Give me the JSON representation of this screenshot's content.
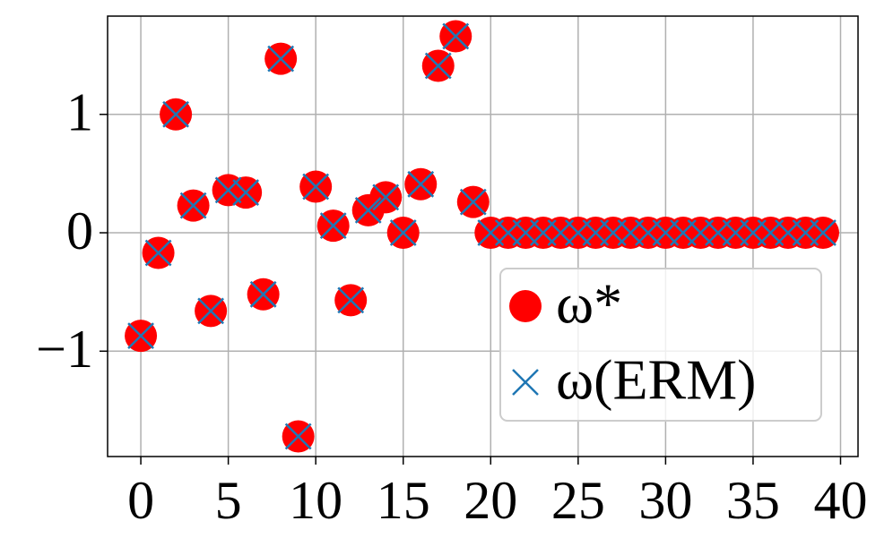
{
  "chart_data": {
    "type": "scatter",
    "x": [
      0,
      1,
      2,
      3,
      4,
      5,
      6,
      7,
      8,
      9,
      10,
      11,
      12,
      13,
      14,
      15,
      16,
      17,
      18,
      19,
      20,
      21,
      22,
      23,
      24,
      25,
      26,
      27,
      28,
      29,
      30,
      31,
      32,
      33,
      34,
      35,
      36,
      37,
      38,
      39
    ],
    "series": [
      {
        "name": "ω*",
        "color": "#ff0000",
        "marker": "circle",
        "values": [
          -0.87,
          -0.17,
          1.0,
          0.23,
          -0.66,
          0.36,
          0.34,
          -0.52,
          1.47,
          -1.72,
          0.39,
          0.06,
          -0.57,
          0.19,
          0.3,
          0.0,
          0.41,
          1.41,
          1.66,
          0.26,
          0,
          0,
          0,
          0,
          0,
          0,
          0,
          0,
          0,
          0,
          0,
          0,
          0,
          0,
          0,
          0,
          0,
          0,
          0,
          0
        ]
      },
      {
        "name": "ω(ERM)",
        "color": "#1f77b4",
        "marker": "x",
        "values": [
          -0.87,
          -0.17,
          1.0,
          0.23,
          -0.66,
          0.36,
          0.34,
          -0.52,
          1.47,
          -1.72,
          0.39,
          0.06,
          -0.57,
          0.19,
          0.3,
          0.0,
          0.41,
          1.41,
          1.66,
          0.26,
          0,
          0,
          0,
          0,
          0,
          0,
          0,
          0,
          0,
          0,
          0,
          0,
          0,
          0,
          0,
          0,
          0,
          0,
          0,
          0
        ]
      }
    ],
    "xlim": [
      -1.9,
      41.0
    ],
    "ylim": [
      -1.89,
      1.83
    ],
    "xticks": [
      0,
      5,
      10,
      15,
      20,
      25,
      30,
      35,
      40
    ],
    "yticks": [
      {
        "value": -1,
        "label": "−1"
      },
      0,
      1
    ],
    "grid": true,
    "legend": "lower right"
  }
}
